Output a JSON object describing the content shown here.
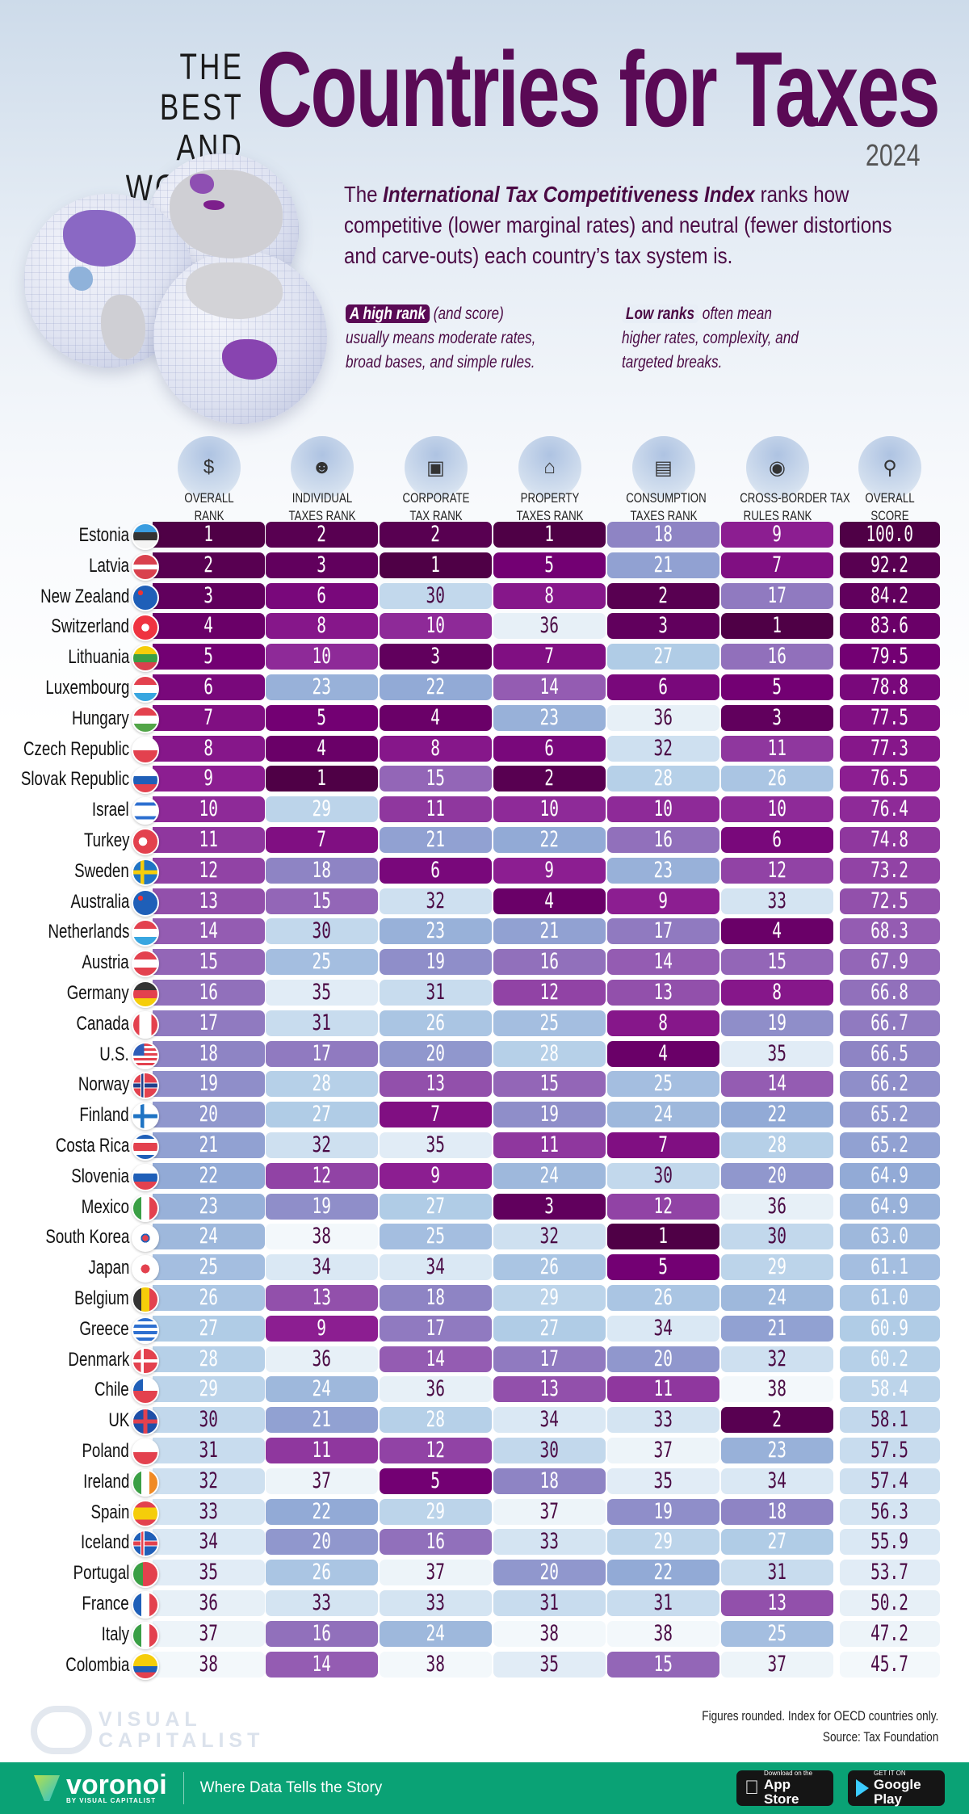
{
  "header": {
    "title_small": "THE BEST AND WORST",
    "title_small_line1": "THE BEST",
    "title_small_line2": "AND WORST",
    "title_main": "Countries for Taxes",
    "year": "2024"
  },
  "intro": {
    "prefix": "The ",
    "index_name": "International Tax Competitiveness Index",
    "suffix": " ranks how competitive (lower marginal rates) and neutral (fewer distortions and carve-outs) each country’s tax system is."
  },
  "notes": {
    "high": {
      "highlight": "A high rank",
      "paren": " (and score)",
      "body": "usually means moderate rates, broad bases, and simple rules."
    },
    "low": {
      "highlight": "Low ranks",
      "paren": " often mean",
      "body": "higher rates, complexity, and targeted breaks."
    }
  },
  "colors": {
    "title": "#5a0a55",
    "rank_best": "#4f0046",
    "rank_mid_purple": "#8b1a8e",
    "rank_lavender": "#9080c0",
    "rank_blue": "#94b0d8",
    "rank_light": "#c8dcec",
    "rank_worst": "#f3f8fb",
    "footer_green": "#0aa275"
  },
  "chart_data": {
    "type": "table",
    "title": "The Best and Worst Countries for Taxes 2024",
    "columns": [
      {
        "key": "overall_rank",
        "label_line1": "OVERALL",
        "label_line2": "RANK",
        "icon": "money-hand-icon"
      },
      {
        "key": "individual",
        "label_line1": "INDIVIDUAL",
        "label_line2": "TAXES RANK",
        "icon": "person-icon"
      },
      {
        "key": "corporate",
        "label_line1": "CORPORATE",
        "label_line2": "TAX RANK",
        "icon": "corporate-board-icon"
      },
      {
        "key": "property",
        "label_line1": "PROPERTY",
        "label_line2": "TAXES RANK",
        "icon": "house-icon"
      },
      {
        "key": "consumption",
        "label_line1": "CONSUMPTION",
        "label_line2": "TAXES RANK",
        "icon": "shopping-bag-icon"
      },
      {
        "key": "cross_border",
        "label_line1": "CROSS-BORDER TAX",
        "label_line2": "RULES RANK",
        "icon": "globe-money-icon"
      },
      {
        "key": "score",
        "label_line1": "OVERALL",
        "label_line2": "SCORE",
        "icon": "magnifier-icon"
      }
    ],
    "rank_range": [
      1,
      38
    ],
    "rows": [
      {
        "country": "Estonia",
        "flag": "estonia",
        "values": [
          1,
          2,
          2,
          1,
          18,
          9
        ],
        "score": "100.0"
      },
      {
        "country": "Latvia",
        "flag": "latvia",
        "values": [
          2,
          3,
          1,
          5,
          21,
          7
        ],
        "score": "92.2"
      },
      {
        "country": "New Zealand",
        "flag": "new-zealand",
        "values": [
          3,
          6,
          30,
          8,
          2,
          17
        ],
        "score": "84.2"
      },
      {
        "country": "Switzerland",
        "flag": "switzerland",
        "values": [
          4,
          8,
          10,
          36,
          3,
          1
        ],
        "score": "83.6"
      },
      {
        "country": "Lithuania",
        "flag": "lithuania",
        "values": [
          5,
          10,
          3,
          7,
          27,
          16
        ],
        "score": "79.5"
      },
      {
        "country": "Luxembourg",
        "flag": "luxembourg",
        "values": [
          6,
          23,
          22,
          14,
          6,
          5
        ],
        "score": "78.8"
      },
      {
        "country": "Hungary",
        "flag": "hungary",
        "values": [
          7,
          5,
          4,
          23,
          36,
          3
        ],
        "score": "77.5"
      },
      {
        "country": "Czech Republic",
        "flag": "czech-republic",
        "values": [
          8,
          4,
          8,
          6,
          32,
          11
        ],
        "score": "77.3"
      },
      {
        "country": "Slovak Republic",
        "flag": "slovakia",
        "values": [
          9,
          1,
          15,
          2,
          28,
          26
        ],
        "score": "76.5"
      },
      {
        "country": "Israel",
        "flag": "israel",
        "values": [
          10,
          29,
          11,
          10,
          10,
          10
        ],
        "score": "76.4"
      },
      {
        "country": "Turkey",
        "flag": "turkey",
        "values": [
          11,
          7,
          21,
          22,
          16,
          6
        ],
        "score": "74.8"
      },
      {
        "country": "Sweden",
        "flag": "sweden",
        "values": [
          12,
          18,
          6,
          9,
          23,
          12
        ],
        "score": "73.2"
      },
      {
        "country": "Australia",
        "flag": "australia",
        "values": [
          13,
          15,
          32,
          4,
          9,
          33
        ],
        "score": "72.5"
      },
      {
        "country": "Netherlands",
        "flag": "netherlands",
        "values": [
          14,
          30,
          23,
          21,
          17,
          4
        ],
        "score": "68.3"
      },
      {
        "country": "Austria",
        "flag": "austria",
        "values": [
          15,
          25,
          19,
          16,
          14,
          15
        ],
        "score": "67.9"
      },
      {
        "country": "Germany",
        "flag": "germany",
        "values": [
          16,
          35,
          31,
          12,
          13,
          8
        ],
        "score": "66.8"
      },
      {
        "country": "Canada",
        "flag": "canada",
        "values": [
          17,
          31,
          26,
          25,
          8,
          19
        ],
        "score": "66.7"
      },
      {
        "country": "U.S.",
        "flag": "usa",
        "values": [
          18,
          17,
          20,
          28,
          4,
          35
        ],
        "score": "66.5"
      },
      {
        "country": "Norway",
        "flag": "norway",
        "values": [
          19,
          28,
          13,
          15,
          25,
          14
        ],
        "score": "66.2"
      },
      {
        "country": "Finland",
        "flag": "finland",
        "values": [
          20,
          27,
          7,
          19,
          24,
          22
        ],
        "score": "65.2"
      },
      {
        "country": "Costa Rica",
        "flag": "costa-rica",
        "values": [
          21,
          32,
          35,
          11,
          7,
          28
        ],
        "score": "65.2"
      },
      {
        "country": "Slovenia",
        "flag": "slovenia",
        "values": [
          22,
          12,
          9,
          24,
          30,
          20
        ],
        "score": "64.9"
      },
      {
        "country": "Mexico",
        "flag": "mexico",
        "values": [
          23,
          19,
          27,
          3,
          12,
          36
        ],
        "score": "64.9"
      },
      {
        "country": "South Korea",
        "flag": "south-korea",
        "values": [
          24,
          38,
          25,
          32,
          1,
          30
        ],
        "score": "63.0"
      },
      {
        "country": "Japan",
        "flag": "japan",
        "values": [
          25,
          34,
          34,
          26,
          5,
          29
        ],
        "score": "61.1"
      },
      {
        "country": "Belgium",
        "flag": "belgium",
        "values": [
          26,
          13,
          18,
          29,
          26,
          24
        ],
        "score": "61.0"
      },
      {
        "country": "Greece",
        "flag": "greece",
        "values": [
          27,
          9,
          17,
          27,
          34,
          21
        ],
        "score": "60.9"
      },
      {
        "country": "Denmark",
        "flag": "denmark",
        "values": [
          28,
          36,
          14,
          17,
          20,
          32
        ],
        "score": "60.2"
      },
      {
        "country": "Chile",
        "flag": "chile",
        "values": [
          29,
          24,
          36,
          13,
          11,
          38
        ],
        "score": "58.4"
      },
      {
        "country": "UK",
        "flag": "uk",
        "values": [
          30,
          21,
          28,
          34,
          33,
          2
        ],
        "score": "58.1"
      },
      {
        "country": "Poland",
        "flag": "poland",
        "values": [
          31,
          11,
          12,
          30,
          37,
          23
        ],
        "score": "57.5"
      },
      {
        "country": "Ireland",
        "flag": "ireland",
        "values": [
          32,
          37,
          5,
          18,
          35,
          34
        ],
        "score": "57.4"
      },
      {
        "country": "Spain",
        "flag": "spain",
        "values": [
          33,
          22,
          29,
          37,
          19,
          18
        ],
        "score": "56.3"
      },
      {
        "country": "Iceland",
        "flag": "iceland",
        "values": [
          34,
          20,
          16,
          33,
          29,
          27
        ],
        "score": "55.9"
      },
      {
        "country": "Portugal",
        "flag": "portugal",
        "values": [
          35,
          26,
          37,
          20,
          22,
          31
        ],
        "score": "53.7"
      },
      {
        "country": "France",
        "flag": "france",
        "values": [
          36,
          33,
          33,
          31,
          31,
          13
        ],
        "score": "50.2"
      },
      {
        "country": "Italy",
        "flag": "italy",
        "values": [
          37,
          16,
          24,
          38,
          38,
          25
        ],
        "score": "47.2"
      },
      {
        "country": "Colombia",
        "flag": "colombia",
        "values": [
          38,
          14,
          38,
          35,
          15,
          37
        ],
        "score": "45.7"
      }
    ]
  },
  "footnote": {
    "line1": "Figures rounded. Index for OECD countries only.",
    "line2": "Source: Tax Foundation"
  },
  "watermark": {
    "line1": "VISUAL",
    "line2": "CAPITALIST"
  },
  "footer": {
    "brand": "voronoi",
    "brand_by": "BY VISUAL CAPITALIST",
    "tagline": "Where Data Tells the Story",
    "app_store_small": "Download on the",
    "app_store_big": "App Store",
    "google_play_small": "GET IT ON",
    "google_play_big": "Google Play"
  }
}
